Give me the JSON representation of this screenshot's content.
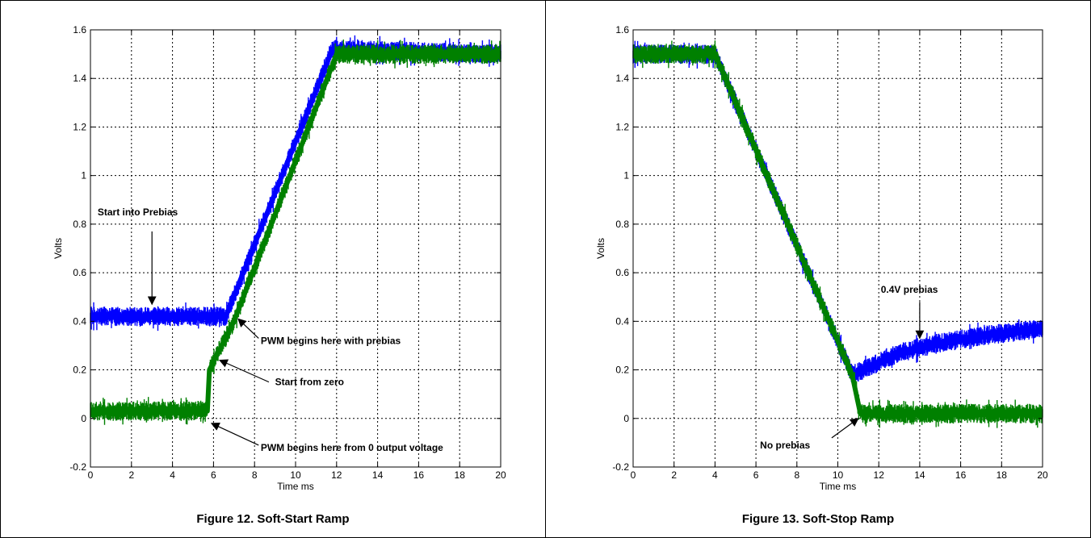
{
  "colors": {
    "prebias_trace": "#0000ff",
    "zero_trace": "#008000",
    "grid": "#000000"
  },
  "chart_data": [
    {
      "type": "line",
      "caption": "Figure 12. Soft-Start Ramp",
      "xlabel": "Time ms",
      "ylabel": "Volts",
      "xlim": [
        0,
        20
      ],
      "ylim": [
        -0.2,
        1.6
      ],
      "xticks": [
        0,
        2,
        4,
        6,
        8,
        10,
        12,
        14,
        16,
        18,
        20
      ],
      "yticks": [
        -0.2,
        0,
        0.2,
        0.4,
        0.6,
        0.8,
        1,
        1.2,
        1.4,
        1.6
      ],
      "ytick_labels": [
        "-0.2",
        "0",
        "0.2",
        "0.4",
        "0.6",
        "0.8",
        "1",
        "1.2",
        "1.4",
        "1.6"
      ],
      "grid": true,
      "series": [
        {
          "color": "#0000ff",
          "x": [
            0,
            6.6,
            11.8,
            20
          ],
          "y": [
            0.42,
            0.42,
            1.52,
            1.5
          ]
        },
        {
          "color": "#008000",
          "x": [
            0,
            5.7,
            5.8,
            7.0,
            12.0,
            20
          ],
          "y": [
            0.03,
            0.03,
            0.2,
            0.4,
            1.5,
            1.5
          ]
        }
      ],
      "annotations": [
        {
          "text": "Start into Prebias",
          "x": 0.35,
          "y": 0.85,
          "arrow_x": 3.0,
          "arrow_y": 0.47,
          "arrow_from_x": 3.0,
          "arrow_from_y": 0.77
        },
        {
          "text": "PWM begins here with prebias",
          "x": 8.3,
          "y": 0.32,
          "arrow_x": 7.2,
          "arrow_y": 0.41,
          "arrow_from_x": 8.2,
          "arrow_from_y": 0.33
        },
        {
          "text": "Start from zero",
          "x": 9.0,
          "y": 0.15,
          "arrow_x": 6.3,
          "arrow_y": 0.24,
          "arrow_from_x": 8.7,
          "arrow_from_y": 0.15
        },
        {
          "text": "PWM begins here from 0 output voltage",
          "x": 8.3,
          "y": -0.12,
          "arrow_x": 5.9,
          "arrow_y": -0.02,
          "arrow_from_x": 8.2,
          "arrow_from_y": -0.11
        }
      ]
    },
    {
      "type": "line",
      "caption": "Figure 13. Soft-Stop Ramp",
      "xlabel": "Time ms",
      "ylabel": "Volts",
      "xlim": [
        0,
        20
      ],
      "ylim": [
        -0.2,
        1.6
      ],
      "xticks": [
        0,
        2,
        4,
        6,
        8,
        10,
        12,
        14,
        16,
        18,
        20
      ],
      "yticks": [
        -0.2,
        0,
        0.2,
        0.4,
        0.6,
        0.8,
        1,
        1.2,
        1.4,
        1.6
      ],
      "ytick_labels": [
        "-0.2",
        "0",
        "0.2",
        "0.4",
        "0.6",
        "0.8",
        "1",
        "1.2",
        "1.4",
        "1.6"
      ],
      "grid": true,
      "series": [
        {
          "color": "#0000ff",
          "x": [
            0,
            4,
            10.7,
            11.5,
            13,
            15,
            17,
            19,
            20
          ],
          "y": [
            1.5,
            1.5,
            0.18,
            0.21,
            0.27,
            0.31,
            0.34,
            0.36,
            0.37
          ]
        },
        {
          "color": "#008000",
          "x": [
            0,
            4,
            10.7,
            11.1,
            20
          ],
          "y": [
            1.5,
            1.5,
            0.18,
            0.02,
            0.02
          ]
        }
      ],
      "annotations": [
        {
          "text": "0.4V prebias",
          "x": 12.1,
          "y": 0.53,
          "arrow_x": 14.0,
          "arrow_y": 0.33,
          "arrow_from_x": 14.0,
          "arrow_from_y": 0.48
        },
        {
          "text": "No prebias",
          "x": 6.2,
          "y": -0.11,
          "arrow_x": 11.0,
          "arrow_y": 0.0,
          "arrow_from_x": 9.7,
          "arrow_from_y": -0.08
        }
      ]
    }
  ]
}
